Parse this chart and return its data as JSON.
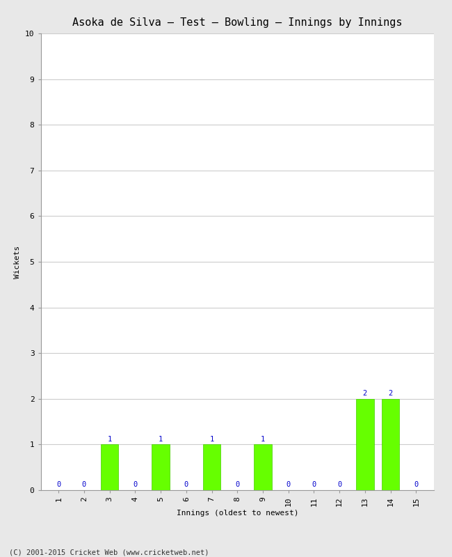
{
  "title": "Asoka de Silva – Test – Bowling – Innings by Innings",
  "xlabel": "Innings (oldest to newest)",
  "ylabel": "Wickets",
  "categories": [
    1,
    2,
    3,
    4,
    5,
    6,
    7,
    8,
    9,
    10,
    11,
    12,
    13,
    14,
    15
  ],
  "values": [
    0,
    0,
    1,
    0,
    1,
    0,
    1,
    0,
    1,
    0,
    0,
    0,
    2,
    2,
    0
  ],
  "bar_color": "#66ff00",
  "bar_edge_color": "#44cc00",
  "ylim": [
    0,
    10
  ],
  "yticks": [
    0,
    1,
    2,
    3,
    4,
    5,
    6,
    7,
    8,
    9,
    10
  ],
  "label_color": "#0000cc",
  "label_fontsize": 7.5,
  "title_fontsize": 11,
  "axis_label_fontsize": 8,
  "tick_fontsize": 8,
  "footer": "(C) 2001-2015 Cricket Web (www.cricketweb.net)",
  "footer_fontsize": 7.5,
  "background_color": "#e8e8e8",
  "plot_background_color": "#ffffff",
  "grid_color": "#cccccc"
}
